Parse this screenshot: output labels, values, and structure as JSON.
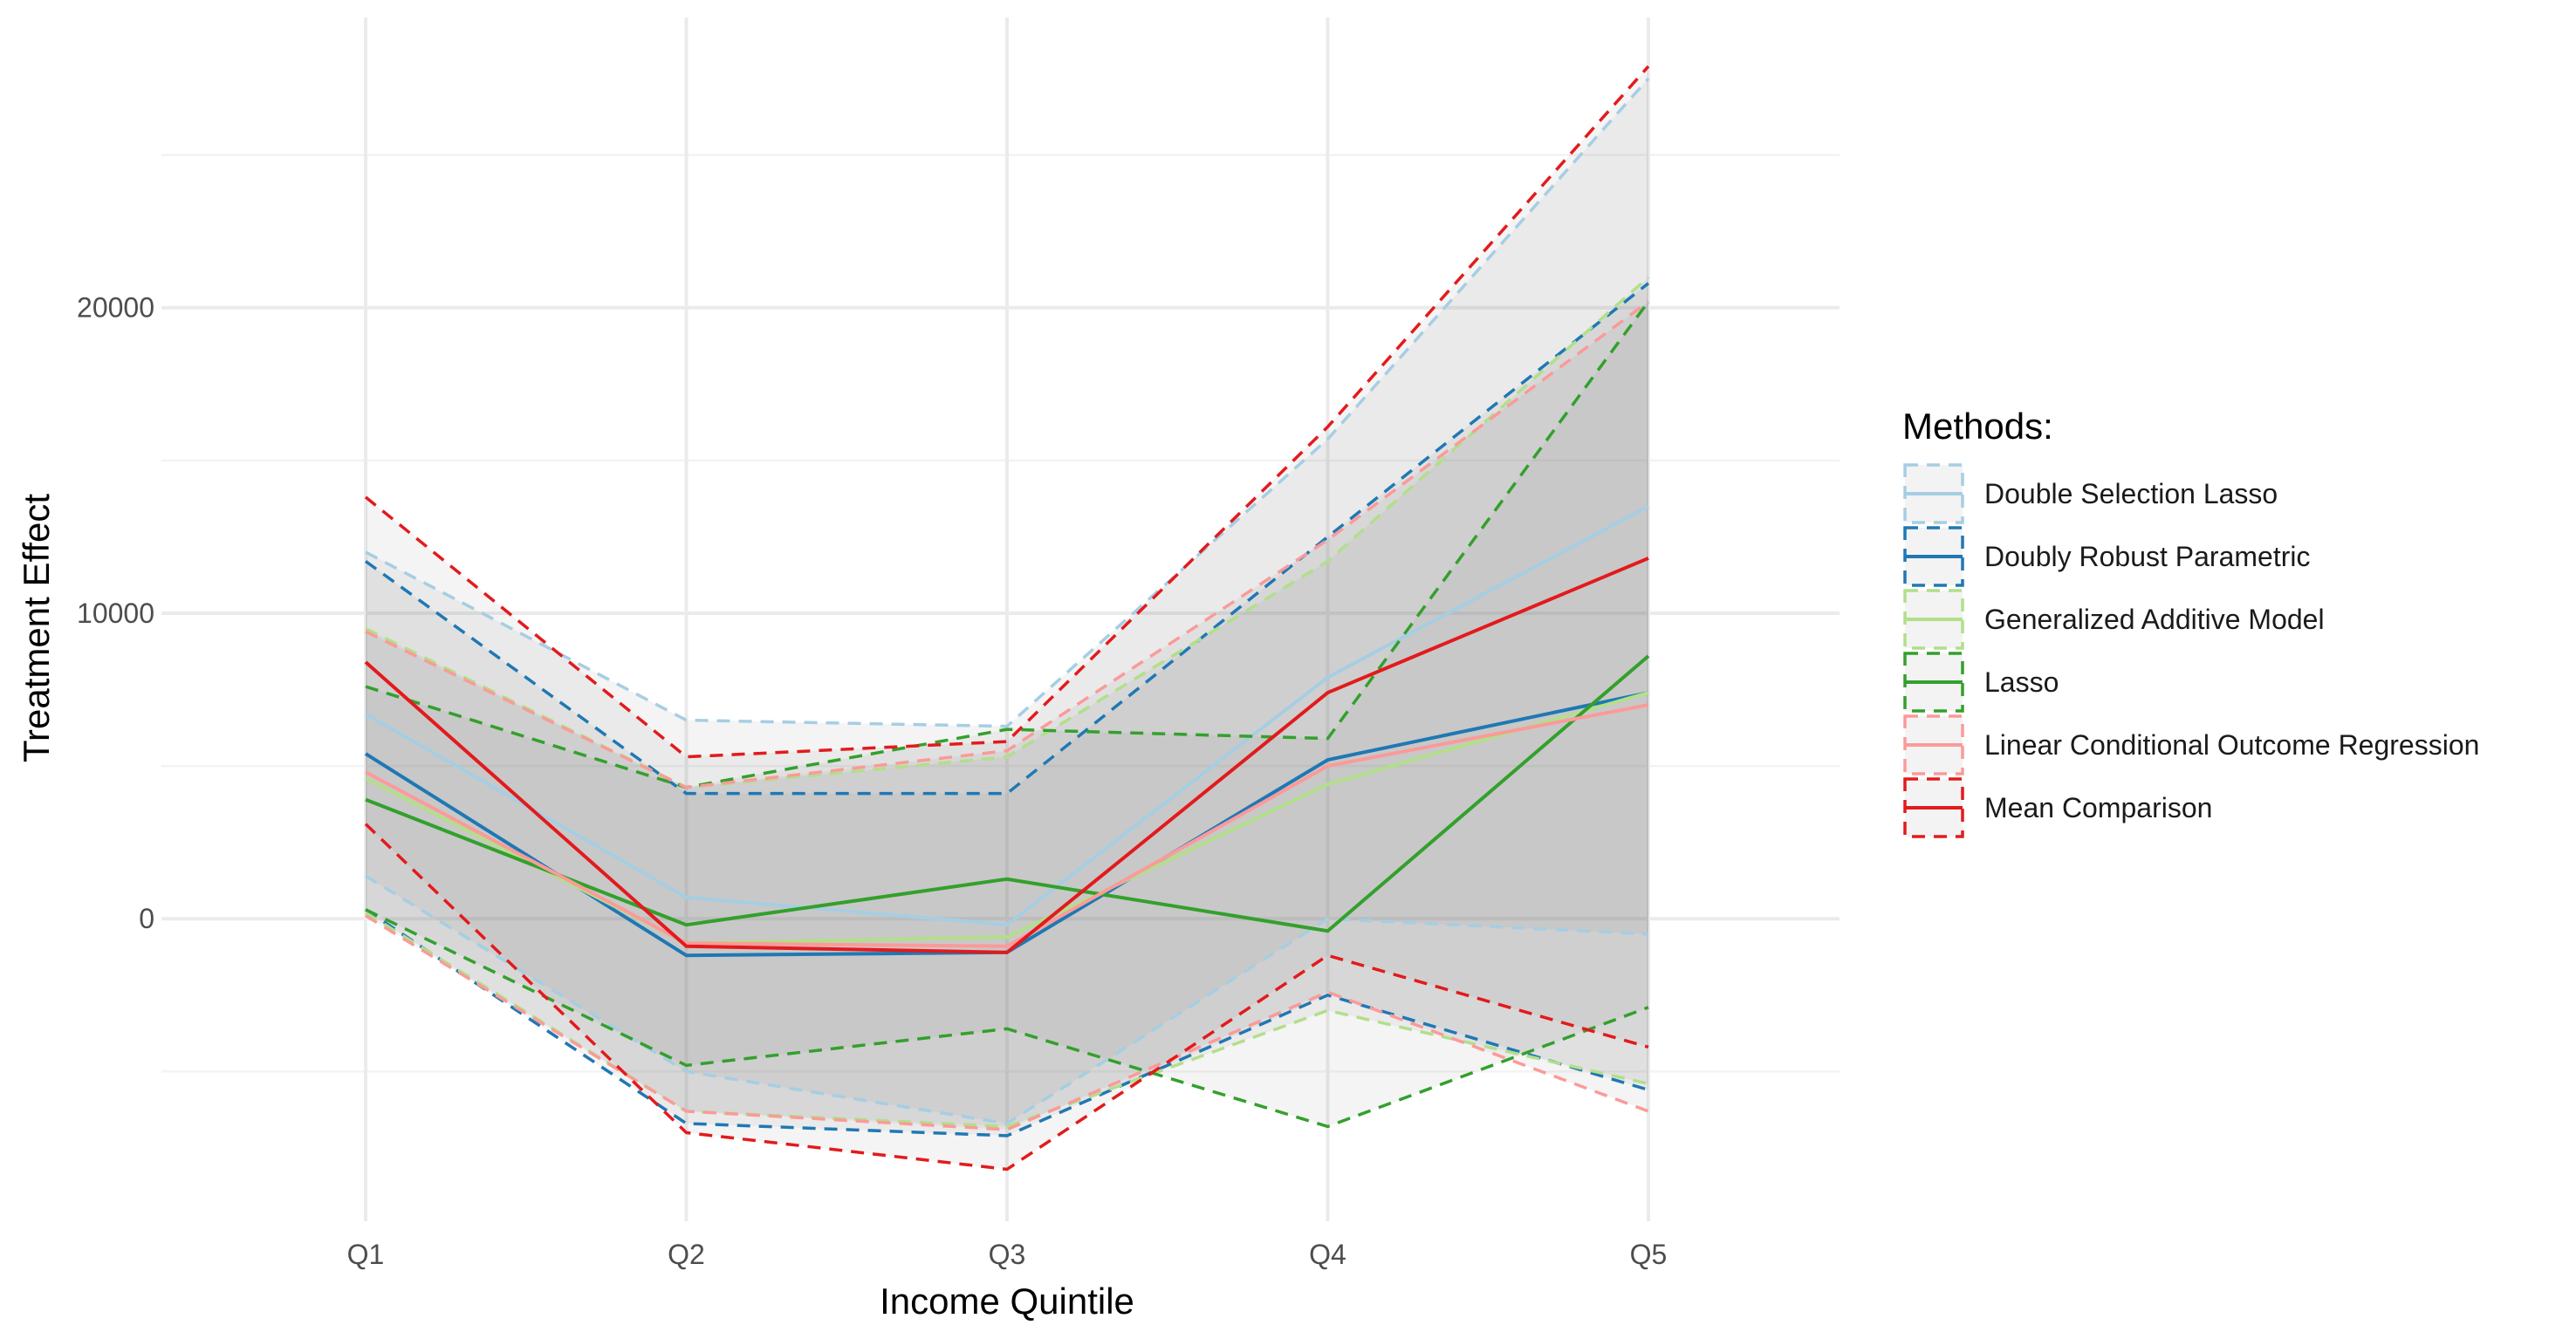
{
  "chart_data": {
    "type": "line",
    "categories": [
      "Q1",
      "Q2",
      "Q3",
      "Q4",
      "Q5"
    ],
    "xlabel": "Income Quintile",
    "ylabel": "Treatment Effect",
    "ylim": [
      -9900,
      29500
    ],
    "y_ticks": [
      0,
      10000,
      20000
    ],
    "y_tick_labels": [
      "0",
      "10000",
      "20000"
    ],
    "grid": true,
    "legend": {
      "title": "Methods:",
      "placement": "right"
    },
    "series": [
      {
        "name": "Double Selection Lasso",
        "color": "#a6cee3",
        "estimate": [
          6700,
          700,
          -200,
          7900,
          13500
        ],
        "lower": [
          1400,
          -5000,
          -6700,
          0,
          -500
        ],
        "upper": [
          12000,
          6500,
          6300,
          15700,
          27500
        ]
      },
      {
        "name": "Doubly Robust Parametric",
        "color": "#1f78b4",
        "estimate": [
          5400,
          -1200,
          -1100,
          5200,
          7400
        ],
        "lower": [
          300,
          -6700,
          -7100,
          -2500,
          -5600
        ],
        "upper": [
          11700,
          4100,
          4100,
          12500,
          20800
        ]
      },
      {
        "name": "Generalized Additive Model",
        "color": "#b2df8a",
        "estimate": [
          4600,
          -800,
          -600,
          4400,
          7400
        ],
        "lower": [
          200,
          -6300,
          -6800,
          -3000,
          -5400
        ],
        "upper": [
          9500,
          4300,
          5300,
          11700,
          21000
        ]
      },
      {
        "name": "Lasso",
        "color": "#33a02c",
        "estimate": [
          3900,
          -200,
          1300,
          -400,
          8600
        ],
        "lower": [
          300,
          -4800,
          -3600,
          -6800,
          -2900
        ],
        "upper": [
          7600,
          4300,
          6200,
          5900,
          20200
        ]
      },
      {
        "name": "Linear Conditional Outcome Regression",
        "color": "#fb9a99",
        "estimate": [
          4800,
          -800,
          -900,
          5000,
          7000
        ],
        "lower": [
          100,
          -6300,
          -6900,
          -2400,
          -6300
        ],
        "upper": [
          9400,
          4300,
          5500,
          12400,
          20200
        ]
      },
      {
        "name": "Mean Comparison",
        "color": "#e31a1c",
        "estimate": [
          8400,
          -900,
          -1100,
          7400,
          11800
        ],
        "lower": [
          3100,
          -7000,
          -8200,
          -1200,
          -4200
        ],
        "upper": [
          13800,
          5300,
          5800,
          16100,
          27900
        ]
      }
    ]
  }
}
